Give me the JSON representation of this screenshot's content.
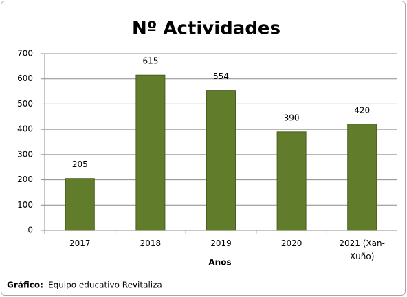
{
  "chart_data": {
    "type": "bar",
    "title": "Nº Actividades",
    "categories": [
      "2017",
      "2018",
      "2019",
      "2020",
      "2021 (Xan-Xuño)"
    ],
    "values": [
      205,
      615,
      554,
      390,
      420
    ],
    "color": "#617d2c",
    "xlabel": "Anos",
    "ylim": [
      0,
      700
    ],
    "yticks": [
      0,
      100,
      200,
      300,
      400,
      500,
      600,
      700
    ],
    "grid": true,
    "source_label": "Gráfico:",
    "source": "Equipo educativo Revitaliza"
  }
}
